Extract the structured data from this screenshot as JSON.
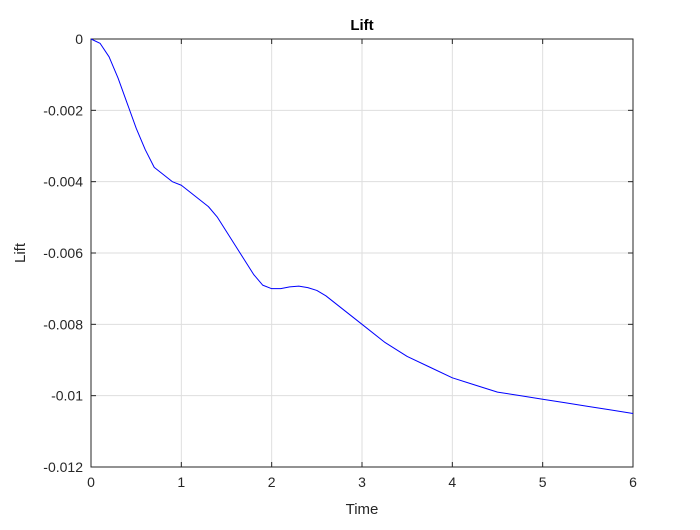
{
  "chart_data": {
    "type": "line",
    "title": "Lift",
    "xlabel": "Time",
    "ylabel": "Lift",
    "xlim": [
      0,
      6
    ],
    "ylim": [
      -0.012,
      0
    ],
    "xticks": [
      0,
      1,
      2,
      3,
      4,
      5,
      6
    ],
    "xtick_labels": [
      "0",
      "1",
      "2",
      "3",
      "4",
      "5",
      "6"
    ],
    "yticks": [
      0,
      -0.002,
      -0.004,
      -0.006,
      -0.008,
      -0.01,
      -0.012
    ],
    "ytick_labels": [
      "0",
      "-0.002",
      "-0.004",
      "-0.006",
      "-0.008",
      "-0.01",
      "-0.012"
    ],
    "grid": true,
    "series": [
      {
        "color": "#0000ff",
        "x": [
          0,
          0.1,
          0.2,
          0.3,
          0.4,
          0.5,
          0.6,
          0.7,
          0.8,
          0.9,
          1.0,
          1.1,
          1.2,
          1.3,
          1.4,
          1.5,
          1.6,
          1.7,
          1.8,
          1.9,
          2.0,
          2.1,
          2.2,
          2.3,
          2.4,
          2.5,
          2.6,
          2.8,
          3.0,
          3.25,
          3.5,
          3.75,
          4.0,
          4.25,
          4.5,
          4.75,
          5.0,
          5.25,
          5.5,
          5.75,
          6.0
        ],
        "y": [
          0,
          -0.00012,
          -0.0005,
          -0.0011,
          -0.0018,
          -0.0025,
          -0.0031,
          -0.0036,
          -0.0038,
          -0.004,
          -0.0041,
          -0.0043,
          -0.0045,
          -0.0047,
          -0.005,
          -0.0054,
          -0.0058,
          -0.0062,
          -0.0066,
          -0.0069,
          -0.007,
          -0.007,
          -0.00695,
          -0.00693,
          -0.00697,
          -0.00705,
          -0.0072,
          -0.0076,
          -0.008,
          -0.0085,
          -0.0089,
          -0.0092,
          -0.0095,
          -0.0097,
          -0.0099,
          -0.01,
          -0.0101,
          -0.0102,
          -0.0103,
          -0.0104,
          -0.0105
        ]
      }
    ]
  }
}
